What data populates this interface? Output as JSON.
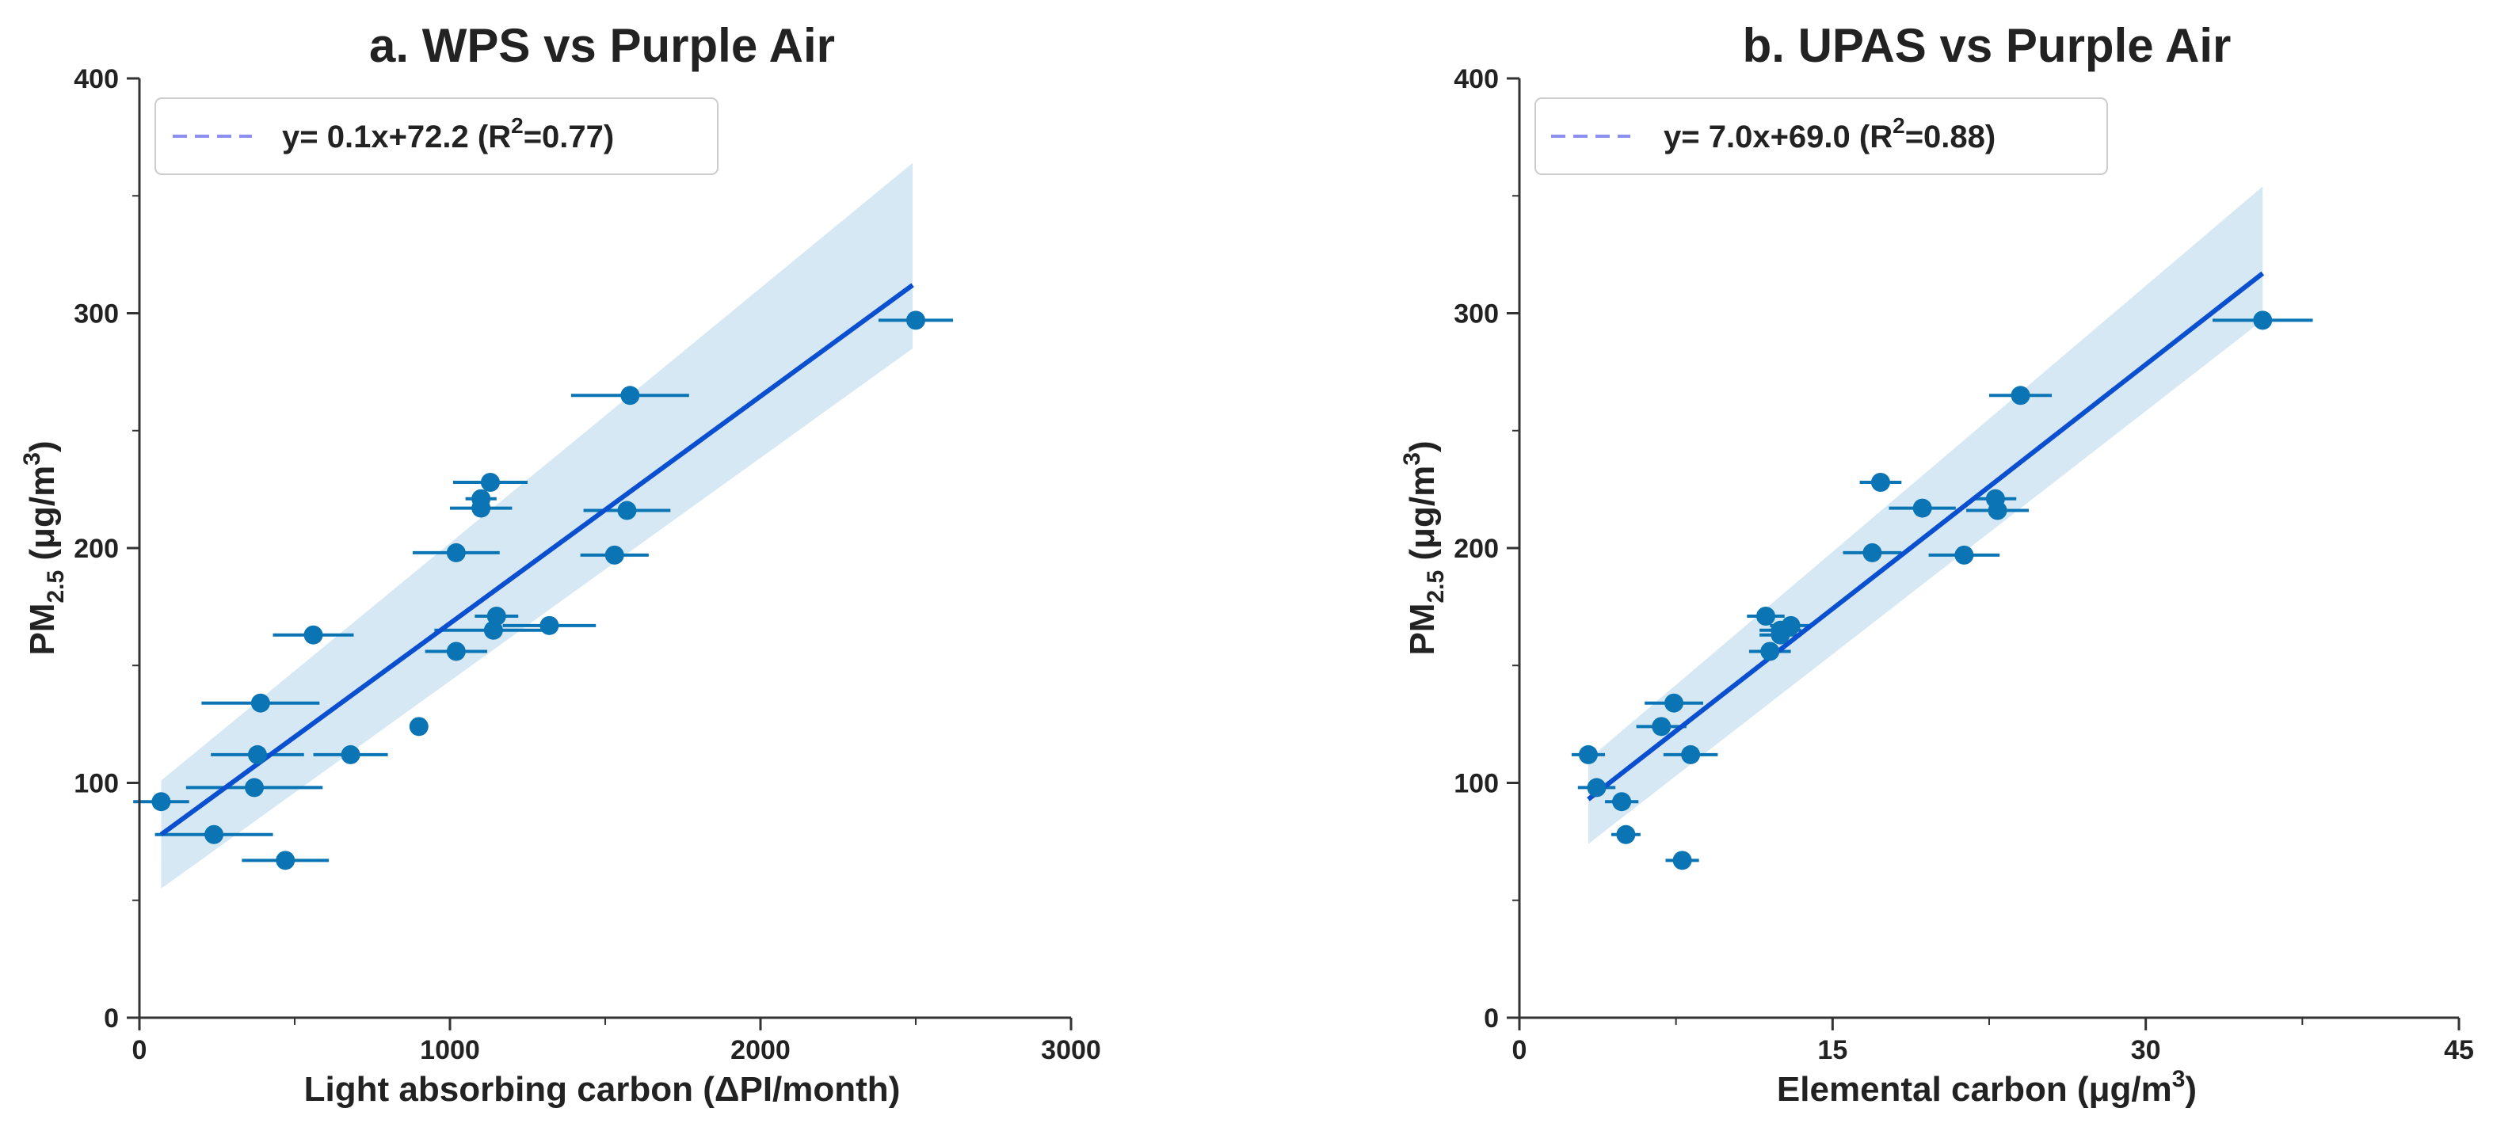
{
  "chart_data": [
    {
      "type": "scatter",
      "title": "a. WPS vs Purple Air",
      "xlabel": "Light absorbing carbon (ΔPI/month)",
      "ylabel_main": "PM",
      "ylabel_sub": "2.5",
      "ylabel_units": "(μg/m",
      "ylabel_units_sup": "3",
      "ylabel_close": ")",
      "xlim": [
        0,
        3000
      ],
      "ylim": [
        0,
        400
      ],
      "xticks": [
        0,
        1000,
        2000,
        3000
      ],
      "yticks": [
        0,
        100,
        200,
        300,
        400
      ],
      "legend_position": "top-left",
      "fit": {
        "legend_label": "y= 0.1x+72.2 (R",
        "legend_sup": "2",
        "legend_tail": "=0.77)",
        "x_range": [
          70,
          2490
        ],
        "y_range": [
          78,
          312
        ],
        "ci_lower": [
          55,
          285
        ],
        "ci_upper": [
          101,
          364
        ]
      },
      "points": [
        {
          "x": 2500,
          "y": 297,
          "xerr": 120
        },
        {
          "x": 1580,
          "y": 265,
          "xerr": 190
        },
        {
          "x": 1130,
          "y": 228,
          "xerr": 120
        },
        {
          "x": 1100,
          "y": 221,
          "xerr": 50
        },
        {
          "x": 1100,
          "y": 217,
          "xerr": 100
        },
        {
          "x": 1570,
          "y": 216,
          "xerr": 140
        },
        {
          "x": 1020,
          "y": 198,
          "xerr": 140
        },
        {
          "x": 1530,
          "y": 197,
          "xerr": 110
        },
        {
          "x": 1150,
          "y": 171,
          "xerr": 70
        },
        {
          "x": 1320,
          "y": 167,
          "xerr": 150
        },
        {
          "x": 1140,
          "y": 165,
          "xerr": 190
        },
        {
          "x": 560,
          "y": 163,
          "xerr": 130
        },
        {
          "x": 1020,
          "y": 156,
          "xerr": 100
        },
        {
          "x": 390,
          "y": 134,
          "xerr": 190
        },
        {
          "x": 900,
          "y": 124,
          "xerr": 0
        },
        {
          "x": 380,
          "y": 112,
          "xerr": 150
        },
        {
          "x": 680,
          "y": 112,
          "xerr": 120
        },
        {
          "x": 370,
          "y": 98,
          "xerr": 220
        },
        {
          "x": 70,
          "y": 92,
          "xerr": 90
        },
        {
          "x": 240,
          "y": 78,
          "xerr": 190
        },
        {
          "x": 470,
          "y": 67,
          "xerr": 140
        }
      ],
      "colors": {
        "points": "#0a74b4",
        "fit": "#0a4fcf",
        "band": "#cfe4f2",
        "legend_line": "#8a8ff0"
      }
    },
    {
      "type": "scatter",
      "title": "b. UPAS vs Purple Air",
      "xlabel_main": "Elemental carbon (μg/m",
      "xlabel_sup": "3",
      "xlabel_close": ")",
      "ylabel_main": "PM",
      "ylabel_sub": "2.5",
      "ylabel_units": "(μg/m",
      "ylabel_units_sup": "3",
      "ylabel_close": ")",
      "xlim": [
        0,
        45
      ],
      "ylim": [
        0,
        400
      ],
      "xticks": [
        0,
        15,
        30,
        45
      ],
      "yticks": [
        0,
        100,
        200,
        300,
        400
      ],
      "legend_position": "top-left",
      "fit": {
        "legend_label": "y= 7.0x+69.0 (R",
        "legend_sup": "2",
        "legend_tail": "=0.88)",
        "x_range": [
          3.3,
          35.6
        ],
        "y_range": [
          93,
          317
        ],
        "ci_lower": [
          74,
          297
        ],
        "ci_upper": [
          110,
          354
        ]
      },
      "points": [
        {
          "x": 35.6,
          "y": 297,
          "xerr": 2.4
        },
        {
          "x": 24.0,
          "y": 265,
          "xerr": 1.5
        },
        {
          "x": 17.3,
          "y": 228,
          "xerr": 1.0
        },
        {
          "x": 22.8,
          "y": 221,
          "xerr": 1.0
        },
        {
          "x": 19.3,
          "y": 217,
          "xerr": 1.6
        },
        {
          "x": 22.9,
          "y": 216,
          "xerr": 1.5
        },
        {
          "x": 16.9,
          "y": 198,
          "xerr": 1.4
        },
        {
          "x": 21.3,
          "y": 197,
          "xerr": 1.7
        },
        {
          "x": 11.8,
          "y": 171,
          "xerr": 0.9
        },
        {
          "x": 13.0,
          "y": 167,
          "xerr": 1.0
        },
        {
          "x": 12.5,
          "y": 165,
          "xerr": 1.0
        },
        {
          "x": 12.5,
          "y": 163,
          "xerr": 1.0
        },
        {
          "x": 12.0,
          "y": 156,
          "xerr": 1.0
        },
        {
          "x": 7.4,
          "y": 134,
          "xerr": 1.4
        },
        {
          "x": 6.8,
          "y": 124,
          "xerr": 1.2
        },
        {
          "x": 3.3,
          "y": 112,
          "xerr": 0.8
        },
        {
          "x": 8.2,
          "y": 112,
          "xerr": 1.3
        },
        {
          "x": 3.7,
          "y": 98,
          "xerr": 0.9
        },
        {
          "x": 4.9,
          "y": 92,
          "xerr": 0.8
        },
        {
          "x": 5.1,
          "y": 78,
          "xerr": 0.7
        },
        {
          "x": 7.8,
          "y": 67,
          "xerr": 0.8
        }
      ],
      "colors": {
        "points": "#0a74b4",
        "fit": "#0a4fcf",
        "band": "#cfe4f2",
        "legend_line": "#8a8ff0"
      }
    }
  ]
}
